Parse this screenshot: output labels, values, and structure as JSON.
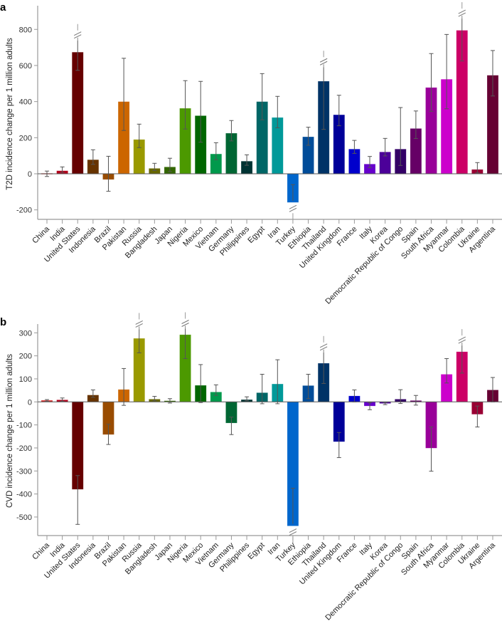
{
  "colors": [
    "#d42a2a",
    "#b3001b",
    "#660000",
    "#663300",
    "#994c00",
    "#cc6600",
    "#999900",
    "#666600",
    "#336600",
    "#4c9900",
    "#006600",
    "#00994c",
    "#006633",
    "#003333",
    "#006666",
    "#009999",
    "#0066cc",
    "#004c99",
    "#003366",
    "#000099",
    "#0000cc",
    "#6600cc",
    "#4c0099",
    "#330066",
    "#660066",
    "#990099",
    "#cc00cc",
    "#cc0066",
    "#990033",
    "#660033"
  ],
  "chart_data": [
    {
      "panel": "a",
      "type": "bar",
      "title": "",
      "xlabel": "",
      "ylabel": "T2D incidence change per 1 million adults",
      "ylim": [
        -260,
        900
      ],
      "yticks": [
        -200,
        0,
        200,
        400,
        600,
        800
      ],
      "grid": false,
      "categories": [
        "China",
        "India",
        "United States",
        "Indonesia",
        "Brazil",
        "Pakistan",
        "Russia",
        "Bangladesh",
        "Japan",
        "Nigeria",
        "Mexico",
        "Vietnam",
        "Germany",
        "Philippines",
        "Egypt",
        "Iran",
        "Turkey",
        "Ethiopia",
        "Thailand",
        "United Kingdom",
        "France",
        "Italy",
        "Korea",
        "Democratic Republic of Congo",
        "Spain",
        "South Africa",
        "Myanmar",
        "Colombia",
        "Ukraine",
        "Argentina"
      ],
      "values": [
        3,
        17,
        674,
        78,
        -32,
        400,
        190,
        30,
        38,
        363,
        322,
        110,
        225,
        70,
        400,
        312,
        -159,
        205,
        513,
        327,
        137,
        54,
        121,
        137,
        251,
        478,
        524,
        795,
        24,
        546
      ],
      "err_low": [
        -15,
        8,
        573,
        52,
        -97,
        240,
        145,
        18,
        12,
        248,
        175,
        78,
        182,
        47,
        299,
        255,
        -150,
        158,
        246,
        266,
        113,
        34,
        99,
        46,
        195,
        346,
        360,
        625,
        5,
        431
      ],
      "err_high": [
        15,
        38,
        739,
        133,
        97,
        640,
        275,
        58,
        86,
        516,
        512,
        172,
        295,
        105,
        555,
        429,
        -60,
        258,
        591,
        435,
        185,
        96,
        196,
        367,
        348,
        666,
        772,
        860,
        62,
        683
      ],
      "break_top": [
        "United States",
        "Thailand",
        "Colombia"
      ],
      "break_bottom": [
        "Turkey"
      ]
    },
    {
      "panel": "b",
      "type": "bar",
      "title": "",
      "xlabel": "",
      "ylabel": "CVD incidence change per 1 million adults",
      "ylim": [
        -580,
        345
      ],
      "yticks": [
        -500,
        -400,
        -300,
        -200,
        -100,
        0,
        100,
        200,
        300
      ],
      "grid": false,
      "categories": [
        "China",
        "India",
        "United States",
        "Indonesia",
        "Brazil",
        "Pakistan",
        "Russia",
        "Bangladesh",
        "Japan",
        "Nigeria",
        "Mexico",
        "Vietnam",
        "Germany",
        "Philippines",
        "Egypt",
        "Iran",
        "Turkey",
        "Ethiopia",
        "Thailand",
        "United Kingdom",
        "France",
        "Italy",
        "Korea",
        "Democratic Republic of Congo",
        "Spain",
        "South Africa",
        "Myanmar",
        "Colombia",
        "Ukraine",
        "Argentina"
      ],
      "values": [
        7,
        9,
        -380,
        30,
        -142,
        54,
        276,
        12,
        5,
        292,
        72,
        43,
        -92,
        10,
        40,
        78,
        -539,
        71,
        168,
        -173,
        26,
        -18,
        -7,
        12,
        6,
        -201,
        120,
        218,
        -54,
        52
      ],
      "err_low": [
        3,
        3,
        -532,
        20,
        -185,
        -15,
        213,
        5,
        -5,
        188,
        -3,
        28,
        -142,
        5,
        -8,
        -8,
        -530,
        14,
        80,
        -242,
        0,
        -34,
        -12,
        -7,
        -14,
        -301,
        82,
        125,
        -109,
        0
      ],
      "err_high": [
        10,
        17,
        -320,
        52,
        -97,
        145,
        315,
        24,
        14,
        318,
        162,
        74,
        -66,
        22,
        120,
        183,
        -375,
        120,
        215,
        -133,
        52,
        -3,
        -3,
        53,
        28,
        -109,
        188,
        245,
        -18,
        106
      ],
      "break_top": [
        "Russia",
        "Nigeria",
        "Thailand",
        "Colombia"
      ],
      "break_bottom": [
        "Turkey"
      ]
    }
  ]
}
